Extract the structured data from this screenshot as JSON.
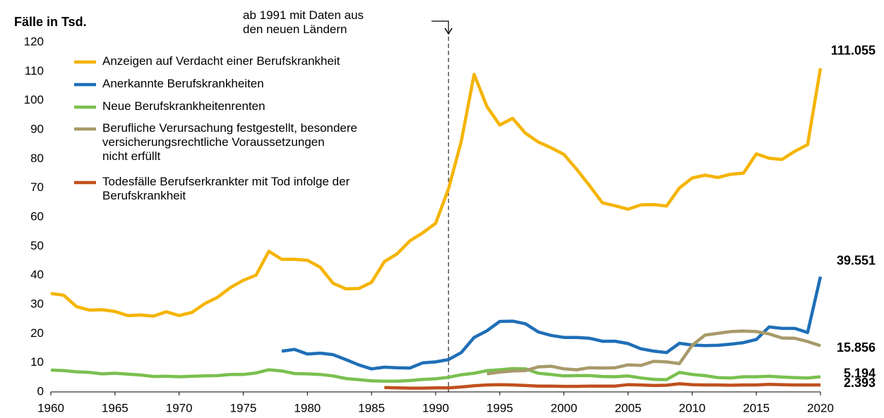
{
  "chart_data": {
    "type": "line",
    "y_label": "Fälle in Tsd.",
    "annotation": {
      "text": "ab 1991 mit Daten aus\nden neuen Ländern",
      "x": 1991
    },
    "x": [
      1960,
      1961,
      1962,
      1963,
      1964,
      1965,
      1966,
      1967,
      1968,
      1969,
      1970,
      1971,
      1972,
      1973,
      1974,
      1975,
      1976,
      1977,
      1978,
      1979,
      1980,
      1981,
      1982,
      1983,
      1984,
      1985,
      1986,
      1987,
      1988,
      1989,
      1990,
      1991,
      1992,
      1993,
      1994,
      1995,
      1996,
      1997,
      1998,
      1999,
      2000,
      2001,
      2002,
      2003,
      2004,
      2005,
      2006,
      2007,
      2008,
      2009,
      2010,
      2011,
      2012,
      2013,
      2014,
      2015,
      2016,
      2017,
      2018,
      2019,
      2020
    ],
    "xlim": [
      1960,
      2020
    ],
    "xticks": [
      1960,
      1965,
      1970,
      1975,
      1980,
      1985,
      1990,
      1995,
      2000,
      2005,
      2010,
      2015,
      2020
    ],
    "ylim": [
      0,
      120
    ],
    "yticks": [
      0,
      10,
      20,
      30,
      40,
      50,
      60,
      70,
      80,
      90,
      100,
      110,
      120
    ],
    "grid": false,
    "series": [
      {
        "name": "Anzeigen auf Verdacht einer Berufskrankheit",
        "color": "#f5b400",
        "values": [
          33.8,
          33.2,
          29.3,
          28.1,
          28.2,
          27.6,
          26.2,
          26.4,
          26.0,
          27.5,
          26.2,
          27.3,
          30.3,
          32.5,
          35.8,
          38.3,
          40.1,
          48.3,
          45.5,
          45.5,
          45.2,
          42.8,
          37.3,
          35.4,
          35.5,
          37.6,
          44.7,
          47.4,
          51.9,
          54.6,
          57.9,
          69.7,
          86.0,
          109.0,
          97.9,
          91.6,
          93.9,
          88.8,
          85.8,
          83.8,
          81.5,
          76.4,
          70.8,
          64.9,
          63.9,
          62.7,
          64.2,
          64.3,
          63.8,
          70.0,
          73.4,
          74.4,
          73.6,
          74.7,
          75.1,
          81.7,
          80.2,
          79.8,
          82.6,
          84.9,
          111.055
        ]
      },
      {
        "name": "Anerkannte Berufskrankheiten",
        "color": "#1f6fb8",
        "values": [
          null,
          null,
          null,
          null,
          null,
          null,
          null,
          null,
          null,
          null,
          null,
          null,
          null,
          null,
          null,
          null,
          null,
          null,
          14.0,
          14.6,
          13.0,
          13.3,
          12.8,
          11.1,
          9.3,
          7.9,
          8.5,
          8.3,
          8.2,
          10.0,
          10.3,
          11.1,
          13.5,
          18.7,
          21.0,
          24.2,
          24.3,
          23.4,
          20.6,
          19.4,
          18.7,
          18.7,
          18.4,
          17.4,
          17.4,
          16.6,
          14.8,
          14.0,
          13.5,
          16.7,
          16.1,
          15.9,
          16.0,
          16.4,
          16.9,
          18.0,
          22.3,
          21.8,
          21.8,
          20.4,
          39.551
        ]
      },
      {
        "name": "Neue Berufskrankheitenrenten",
        "color": "#7ac04f",
        "values": [
          7.5,
          7.3,
          6.9,
          6.7,
          6.2,
          6.4,
          6.1,
          5.8,
          5.3,
          5.4,
          5.2,
          5.4,
          5.5,
          5.6,
          6.0,
          6.0,
          6.5,
          7.6,
          7.2,
          6.3,
          6.2,
          6.0,
          5.5,
          4.6,
          4.2,
          3.8,
          3.7,
          3.7,
          3.9,
          4.3,
          4.5,
          5.0,
          5.9,
          6.4,
          7.3,
          7.6,
          8.0,
          7.9,
          6.4,
          6.0,
          5.5,
          5.6,
          5.6,
          5.3,
          5.2,
          5.5,
          4.8,
          4.3,
          4.2,
          6.7,
          6.0,
          5.6,
          4.9,
          4.8,
          5.2,
          5.2,
          5.4,
          5.1,
          4.9,
          4.8,
          5.194
        ]
      },
      {
        "name": "Berufliche Verursachung festgestellt, besondere\nversicherungsrechtliche Voraussetzungen\nnicht erfüllt",
        "color": "#a89a6a",
        "values": [
          null,
          null,
          null,
          null,
          null,
          null,
          null,
          null,
          null,
          null,
          null,
          null,
          null,
          null,
          null,
          null,
          null,
          null,
          null,
          null,
          null,
          null,
          null,
          null,
          null,
          null,
          null,
          null,
          null,
          null,
          null,
          null,
          null,
          null,
          6.2,
          6.8,
          7.2,
          7.3,
          8.6,
          8.8,
          7.9,
          7.6,
          8.3,
          8.2,
          8.3,
          9.3,
          9.1,
          10.5,
          10.3,
          9.7,
          16.0,
          19.5,
          20.1,
          20.7,
          20.9,
          20.7,
          19.9,
          18.5,
          18.4,
          17.3,
          15.856
        ]
      },
      {
        "name": "Todesfälle Berufserkrankter mit Tod infolge der\nBerufskrankheit",
        "color": "#c0501e",
        "values": [
          null,
          null,
          null,
          null,
          null,
          null,
          null,
          null,
          null,
          null,
          null,
          null,
          null,
          null,
          null,
          null,
          null,
          null,
          null,
          null,
          null,
          null,
          null,
          null,
          null,
          null,
          1.5,
          1.4,
          1.3,
          1.3,
          1.4,
          1.4,
          1.7,
          2.1,
          2.4,
          2.5,
          2.4,
          2.2,
          2.0,
          2.0,
          1.9,
          1.9,
          2.0,
          2.0,
          2.0,
          2.5,
          2.4,
          2.2,
          2.3,
          2.8,
          2.5,
          2.4,
          2.4,
          2.3,
          2.4,
          2.4,
          2.6,
          2.5,
          2.4,
          2.4,
          2.393
        ]
      }
    ]
  }
}
